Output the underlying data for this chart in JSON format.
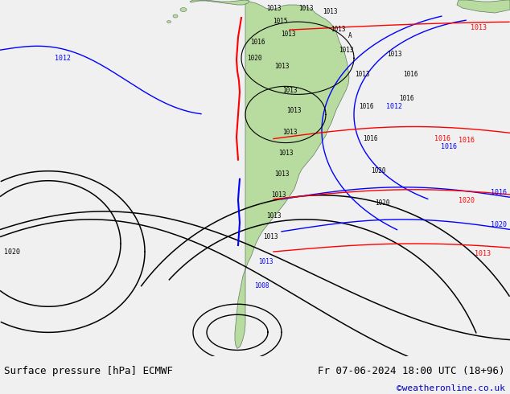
{
  "title_left": "Surface pressure [hPa] ECMWF",
  "title_right": "Fr 07-06-2024 18:00 UTC (18+96)",
  "credit": "©weatheronline.co.uk",
  "ocean_color": "#c8d0d8",
  "land_color": "#b8dca0",
  "figsize": [
    6.34,
    4.9
  ],
  "dpi": 100,
  "bottom_bar_color": "#f0f0f0",
  "title_fontsize": 9,
  "credit_color": "#0000bb",
  "credit_fontsize": 8,
  "isobar_lw": 1.0,
  "label_fontsize": 6
}
